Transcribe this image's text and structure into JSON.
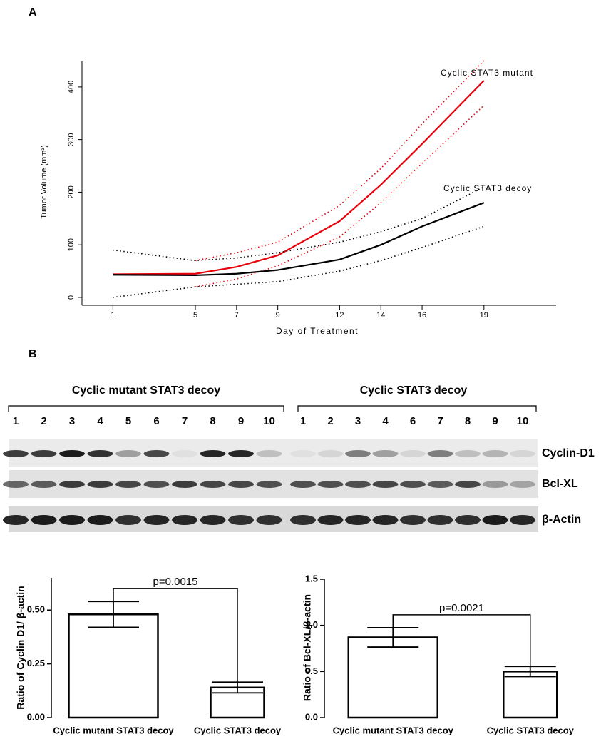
{
  "panel_labels": [
    "A",
    "B"
  ],
  "chart_data": [
    {
      "type": "line",
      "ylabel": "Tumor Volume (mm³)",
      "xlabel": "Day of Treatment",
      "x": [
        1,
        5,
        7,
        9,
        12,
        14,
        16,
        19
      ],
      "xlim": [
        -0.5,
        22.5
      ],
      "ylim": [
        -15,
        450
      ],
      "xticks": [
        1,
        5,
        7,
        9,
        12,
        14,
        16,
        19
      ],
      "yticks": [
        0,
        100,
        200,
        300,
        400
      ],
      "series": [
        {
          "name": "Cyclic STAT3 mutant",
          "color": "#e8000b",
          "values": [
            44,
            45,
            58,
            80,
            145,
            214,
            292,
            412
          ],
          "upper": [
            null,
            70,
            85,
            105,
            175,
            245,
            330,
            450
          ],
          "lower": [
            null,
            20,
            35,
            60,
            115,
            180,
            255,
            365
          ]
        },
        {
          "name": "Cyclic STAT3 decoy",
          "color": "#000000",
          "values": [
            43,
            42,
            45,
            52,
            72,
            100,
            135,
            180
          ],
          "upper": [
            90,
            70,
            75,
            85,
            105,
            125,
            150,
            210
          ],
          "lower": [
            0,
            20,
            25,
            30,
            50,
            70,
            95,
            135
          ]
        }
      ]
    },
    {
      "type": "bar",
      "ylabel": "Ratio of Cyclin D1/ β-actin",
      "categories": [
        "Cyclic mutant STAT3 decoy",
        "Cyclic STAT3 decoy"
      ],
      "values": [
        0.48,
        0.14
      ],
      "errors": [
        0.06,
        0.025
      ],
      "color": "#ffffff",
      "ylim": [
        0,
        0.65
      ],
      "yticks": [
        {
          "value": 0,
          "label": "0.00"
        },
        {
          "value": 0.25,
          "label": "0.25"
        },
        {
          "value": 0.5,
          "label": "0.50"
        }
      ],
      "annotation": "p=0.0015"
    },
    {
      "type": "bar",
      "ylabel": "Ratio of Bcl-XL/β-actin",
      "categories": [
        "Cyclic mutant STAT3 decoy",
        "Cyclic STAT3 decoy"
      ],
      "values": [
        0.87,
        0.5
      ],
      "errors": [
        0.105,
        0.055
      ],
      "color": "#ffffff",
      "ylim": [
        0,
        1.5
      ],
      "yticks": [
        {
          "value": 0,
          "label": "0.0"
        },
        {
          "value": 0.5,
          "label": "0.5"
        },
        {
          "value": 1,
          "label": "1.0"
        },
        {
          "value": 1.5,
          "label": "1.5"
        }
      ],
      "annotation": "p=0.0021"
    }
  ],
  "blot": {
    "groups": [
      {
        "label": "Cyclic mutant STAT3 decoy",
        "lanes": [
          "1",
          "2",
          "3",
          "4",
          "5",
          "6",
          "7",
          "8",
          "9",
          "10"
        ]
      },
      {
        "label": "Cyclic STAT3 decoy",
        "lanes": [
          "1",
          "2",
          "3",
          "4",
          "6",
          "7",
          "8",
          "9",
          "10"
        ]
      }
    ],
    "rows": [
      "Cyclin-D1",
      "Bcl-XL",
      "β-Actin"
    ]
  }
}
